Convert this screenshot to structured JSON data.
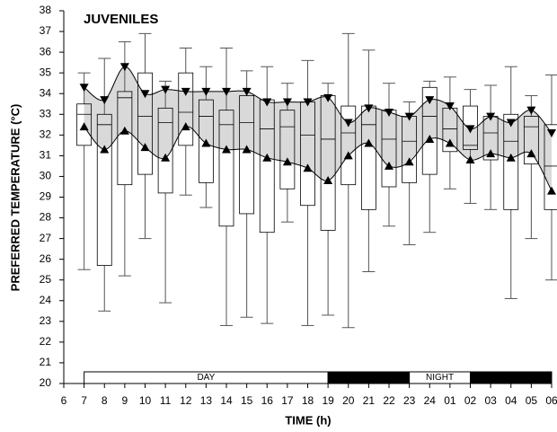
{
  "chart_data": {
    "type": "box",
    "title": "JUVENILES",
    "xlabel": "TIME  (h)",
    "ylabel": "PREFERRED TEMPERATURE (°C)",
    "categories": [
      "6",
      "7",
      "8",
      "9",
      "10",
      "11",
      "12",
      "13",
      "14",
      "15",
      "16",
      "17",
      "18",
      "19",
      "20",
      "21",
      "22",
      "23",
      "24",
      "01",
      "02",
      "03",
      "04",
      "05",
      "06"
    ],
    "whisker_low": [
      null,
      25.5,
      23.5,
      25.2,
      27.0,
      23.9,
      29.1,
      28.5,
      22.8,
      23.2,
      22.9,
      27.8,
      22.8,
      23.3,
      22.7,
      25.4,
      27.6,
      26.7,
      27.3,
      29.4,
      28.7,
      28.4,
      24.1,
      27.0,
      25.0
    ],
    "q1": [
      null,
      31.5,
      25.7,
      29.6,
      30.1,
      29.2,
      31.5,
      29.7,
      27.6,
      28.2,
      27.3,
      29.4,
      28.6,
      27.4,
      29.6,
      28.4,
      29.5,
      29.7,
      30.1,
      31.2,
      31.3,
      30.8,
      28.4,
      30.6,
      28.4
    ],
    "median": [
      null,
      33.0,
      32.5,
      33.8,
      32.9,
      32.6,
      33.1,
      32.9,
      32.5,
      32.6,
      32.3,
      32.4,
      32.0,
      31.8,
      32.1,
      32.5,
      31.8,
      31.7,
      32.9,
      32.3,
      31.5,
      32.1,
      31.7,
      32.4,
      30.5
    ],
    "q3": [
      null,
      33.5,
      33.0,
      34.1,
      35.0,
      33.3,
      35.0,
      33.7,
      33.2,
      33.9,
      33.7,
      33.2,
      33.6,
      33.9,
      33.4,
      33.4,
      33.2,
      32.9,
      34.3,
      33.3,
      33.4,
      32.9,
      33.0,
      32.9,
      32.5
    ],
    "whisker_high": [
      null,
      35.0,
      35.7,
      36.5,
      36.9,
      34.6,
      36.2,
      35.3,
      36.2,
      35.1,
      35.3,
      34.5,
      35.6,
      34.5,
      36.9,
      36.1,
      34.5,
      33.6,
      34.6,
      34.8,
      34.2,
      34.4,
      35.3,
      33.9,
      34.9
    ],
    "upper_limit": [
      null,
      34.3,
      33.7,
      35.3,
      34.0,
      34.2,
      34.1,
      34.1,
      34.1,
      34.1,
      33.6,
      33.6,
      33.6,
      33.8,
      32.6,
      33.3,
      33.1,
      32.9,
      33.7,
      33.4,
      32.3,
      32.9,
      32.6,
      33.2,
      32.1
    ],
    "lower_limit": [
      null,
      32.4,
      31.3,
      32.2,
      31.4,
      30.9,
      32.4,
      31.6,
      31.3,
      31.3,
      30.9,
      30.7,
      30.4,
      29.8,
      31.0,
      31.6,
      30.5,
      30.7,
      31.8,
      31.6,
      30.8,
      31.1,
      30.9,
      31.1,
      29.3
    ],
    "ylim": [
      20,
      38
    ],
    "yticks": [
      20,
      21,
      22,
      23,
      24,
      25,
      26,
      27,
      28,
      29,
      30,
      31,
      32,
      33,
      34,
      35,
      36,
      37,
      38
    ],
    "band_color": "#d9d9d9",
    "light_bar": [
      {
        "from": "7",
        "to": "19",
        "color": "#ffffff",
        "label": "DAY"
      },
      {
        "from": "19",
        "to": "23",
        "color": "#000000"
      },
      {
        "from": "23",
        "to": "02",
        "color": "#ffffff",
        "label": "NIGHT"
      },
      {
        "from": "02",
        "to": "06",
        "color": "#000000"
      }
    ]
  }
}
